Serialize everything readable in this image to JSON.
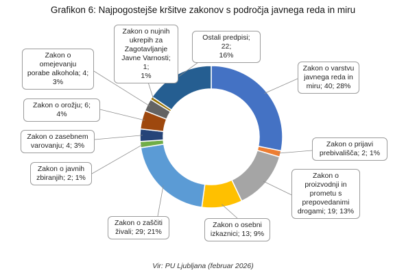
{
  "chart_data": {
    "type": "pie",
    "donut": true,
    "title": "Grafikon 6: Najpogostejše kršitve zakonov s področja javnega reda in miru",
    "source": "Vir: PU Ljubljana (februar 2026)",
    "slices": [
      {
        "key": "jrm",
        "label_lines": [
          "Zakon o varstvu",
          "javnega reda in",
          "miru; 40; 28%"
        ],
        "value": 40,
        "percent": 28,
        "color": "#4472C4"
      },
      {
        "key": "prijava",
        "label_lines": [
          "Zakon o prijavi",
          "prebivališča; 2; 1%"
        ],
        "value": 2,
        "percent": 1,
        "color": "#ED7D31"
      },
      {
        "key": "droge",
        "label_lines": [
          "Zakon o",
          "proizvodnji in",
          "prometu s",
          "prepovedanimi",
          "drogami; 19; 13%"
        ],
        "value": 19,
        "percent": 13,
        "color": "#A5A5A5"
      },
      {
        "key": "izkaznica",
        "label_lines": [
          "Zakon o osebni",
          "izkaznici; 13; 9%"
        ],
        "value": 13,
        "percent": 9,
        "color": "#FFC000"
      },
      {
        "key": "zivali",
        "label_lines": [
          "Zakon o zaščiti",
          "živali; 29; 21%"
        ],
        "value": 29,
        "percent": 21,
        "color": "#5B9BD5"
      },
      {
        "key": "zbiranje",
        "label_lines": [
          "Zakon o javnih",
          "zbiranjih; 2; 1%"
        ],
        "value": 2,
        "percent": 1,
        "color": "#70AD47"
      },
      {
        "key": "varovanje",
        "label_lines": [
          "Zakon o zasebnem",
          "varovanju; 4; 3%"
        ],
        "value": 4,
        "percent": 3,
        "color": "#264478"
      },
      {
        "key": "orozje",
        "label_lines": [
          "Zakon o orožju; 6;",
          "4%"
        ],
        "value": 6,
        "percent": 4,
        "color": "#9E480E"
      },
      {
        "key": "alkohol",
        "label_lines": [
          "Zakon o",
          "omejevanju",
          "porabe alkohola; 4;",
          "3%"
        ],
        "value": 4,
        "percent": 3,
        "color": "#636363"
      },
      {
        "key": "nujni",
        "label_lines": [
          "Zakon o nujnih",
          "ukrepih za",
          "Zagotavljanje",
          "Javne Varnosti; 1;",
          "1%"
        ],
        "value": 1,
        "percent": 1,
        "color": "#997300"
      },
      {
        "key": "ostali",
        "label_lines": [
          "Ostali predpisi; 22;",
          "16%"
        ],
        "value": 22,
        "percent": 16,
        "color": "#255E91"
      }
    ]
  }
}
